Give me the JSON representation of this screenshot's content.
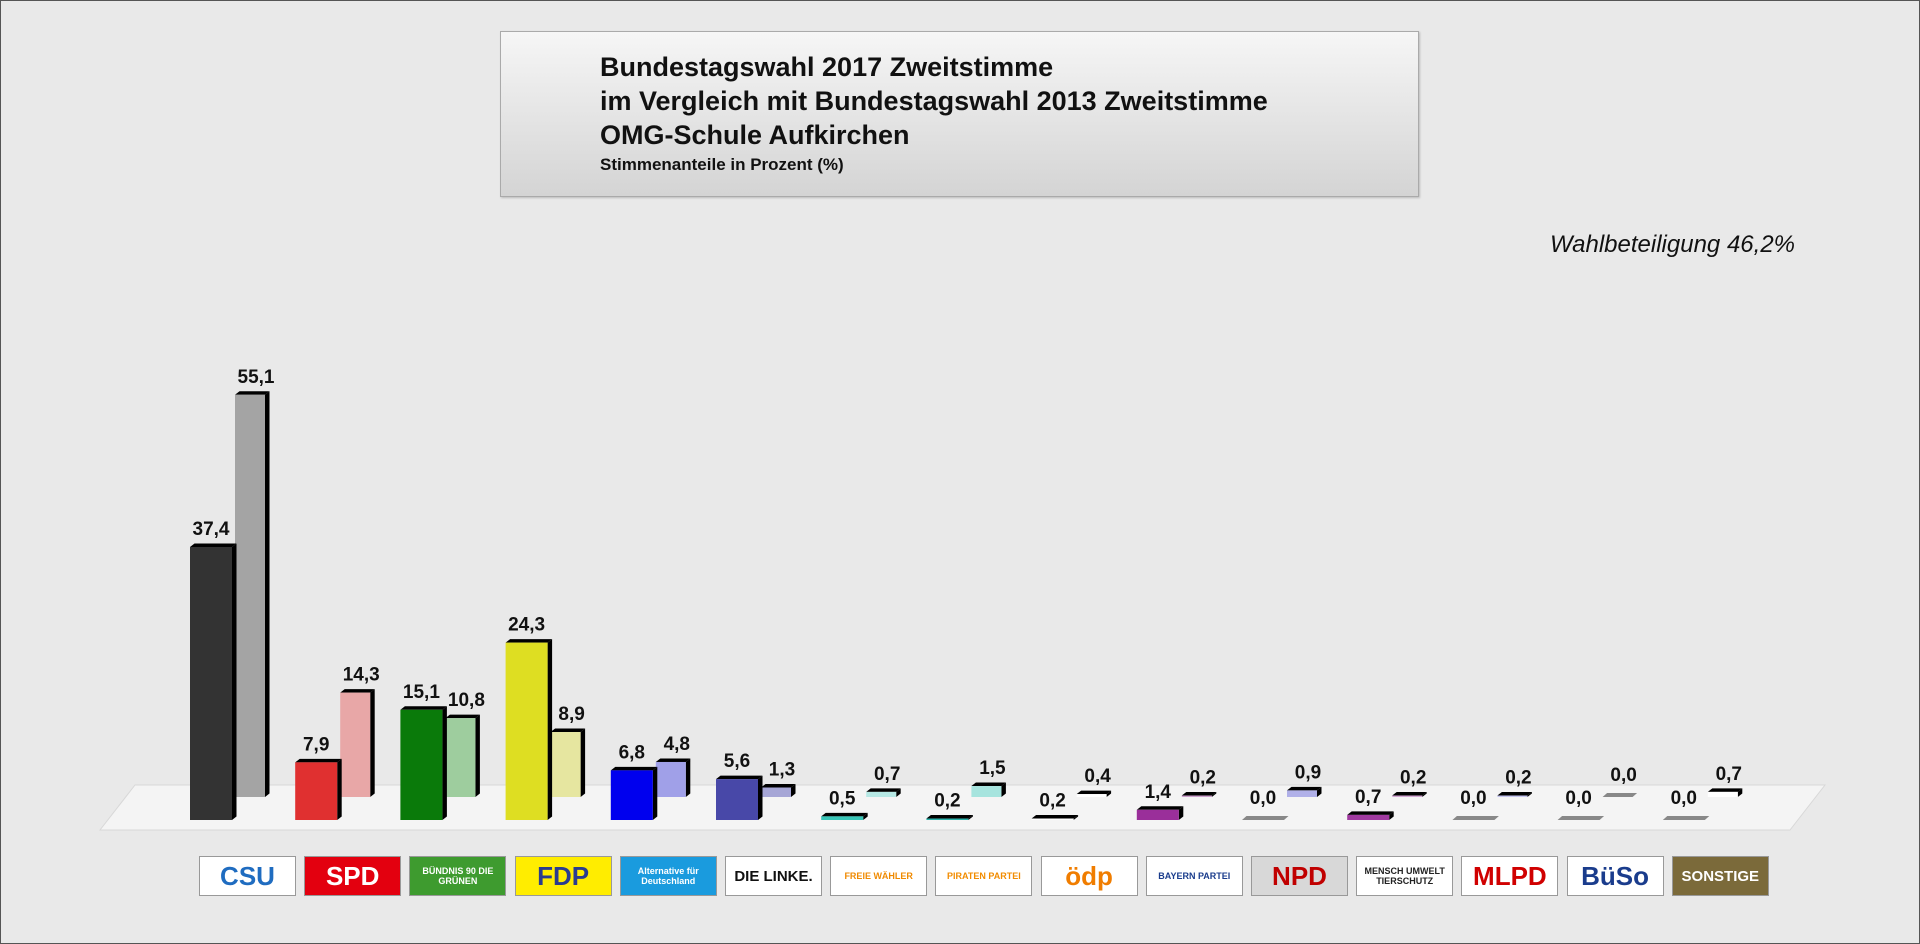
{
  "title": {
    "line1": "Bundestagswahl 2017 Zweitstimme",
    "line2": "im Vergleich mit Bundestagswahl 2013 Zweitstimme",
    "line3": "OMG-Schule Aufkirchen",
    "subtitle": "Stimmenanteile in Prozent (%)"
  },
  "turnout": "Wahlbeteiligung 46,2%",
  "chart_data": {
    "type": "bar",
    "title": "Bundestagswahl 2017 Zweitstimme im Vergleich mit Bundestagswahl 2013 Zweitstimme",
    "categories": [
      "CSU",
      "SPD",
      "Bündnis 90 / Die Grünen",
      "FDP",
      "AfD",
      "Die Linke",
      "Freie Wähler",
      "Piraten",
      "ÖDP",
      "Bayernpartei",
      "NPD",
      "Tierschutzpartei",
      "MLPD",
      "BüSo",
      "Sonstige"
    ],
    "series": [
      {
        "name": "2017",
        "values": [
          37.4,
          7.9,
          15.1,
          24.3,
          6.8,
          5.6,
          0.5,
          0.2,
          0.2,
          1.4,
          0.0,
          0.7,
          0.0,
          0.0,
          0.0
        ],
        "labels": [
          "37,4",
          "7,9",
          "15,1",
          "24,3",
          "6,8",
          "5,6",
          "0,5",
          "0,2",
          "0,2",
          "1,4",
          "0,0",
          "0,7",
          "0,0",
          "0,0",
          "0,0"
        ]
      },
      {
        "name": "2013",
        "values": [
          55.1,
          14.3,
          10.8,
          8.9,
          4.8,
          1.3,
          0.7,
          1.5,
          0.4,
          0.2,
          0.9,
          0.2,
          0.2,
          0.0,
          0.7
        ],
        "labels": [
          "55,1",
          "14,3",
          "10,8",
          "8,9",
          "4,8",
          "1,3",
          "0,7",
          "1,5",
          "0,4",
          "0,2",
          "0,9",
          "0,2",
          "0,2",
          "0,0",
          "0,7"
        ]
      }
    ],
    "colors_2017": [
      "#333333",
      "#e03030",
      "#0a7a0a",
      "#dede22",
      "#0000ee",
      "#4848a8",
      "#39c6b8",
      "#2ab2aa",
      "#ffffff",
      "#9a2f9a",
      "#9898cc",
      "#a03aa0",
      "#a0a0e0",
      "#b0b0b0",
      "#ffffff"
    ],
    "colors_2013": [
      "#a4a4a4",
      "#e8a7a7",
      "#9ecd9e",
      "#e6e6a0",
      "#a0a0e8",
      "#a6a6d6",
      "#b6e8e4",
      "#a6e4de",
      "#ffffff",
      "#cda0cd",
      "#b0b0e8",
      "#d4a8d4",
      "#c4c4ee",
      "#c8c8c8",
      "#ffffff"
    ],
    "ylim": [
      0,
      60
    ],
    "grid": false,
    "legend": "none"
  },
  "logos": [
    {
      "text": "CSU",
      "bg": "#ffffff",
      "fg": "#1f6cc0"
    },
    {
      "text": "SPD",
      "bg": "#e3000f",
      "fg": "#ffffff"
    },
    {
      "text": "BÜNDNIS 90 DIE GRÜNEN",
      "bg": "#3e9b2f",
      "fg": "#ffffff"
    },
    {
      "text": "FDP",
      "bg": "#ffed00",
      "fg": "#2a3c8f"
    },
    {
      "text": "Alternative für Deutschland",
      "bg": "#1a9bde",
      "fg": "#ffffff"
    },
    {
      "text": "DIE LINKE.",
      "bg": "#ffffff",
      "fg": "#111111"
    },
    {
      "text": "FREIE WÄHLER",
      "bg": "#ffffff",
      "fg": "#f08a00"
    },
    {
      "text": "PIRATEN PARTEI",
      "bg": "#ffffff",
      "fg": "#f28c00"
    },
    {
      "text": "ödp",
      "bg": "#ffffff",
      "fg": "#f07d00"
    },
    {
      "text": "BAYERN PARTEI",
      "bg": "#ffffff",
      "fg": "#1a3c8c"
    },
    {
      "text": "NPD",
      "bg": "#d8d8d8",
      "fg": "#c00000"
    },
    {
      "text": "MENSCH UMWELT TIERSCHUTZ",
      "bg": "#ffffff",
      "fg": "#222222"
    },
    {
      "text": "MLPD",
      "bg": "#ffffff",
      "fg": "#d00000"
    },
    {
      "text": "BüSo",
      "bg": "#ffffff",
      "fg": "#1a3c8c"
    },
    {
      "text": "SONSTIGE",
      "bg": "#7b6a3a",
      "fg": "#ffffff"
    }
  ]
}
